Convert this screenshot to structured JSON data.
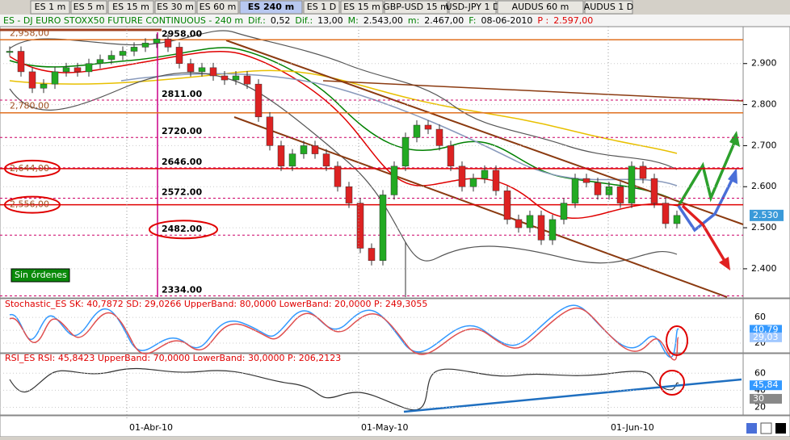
{
  "tabs": [
    "ES 1 m",
    "ES 5 m",
    "ES 15 m",
    "ES 30 m",
    "ES 60 m",
    "ES 240 m",
    "ES 1 D",
    "ES 15 m",
    "GBP-USD 15 m",
    "USD-JPY 1 D",
    "AUDUS 60 m",
    "AUDUS 1 D"
  ],
  "header": [
    {
      "text": "ES - DJ EURO STOXX50 FUTURE CONTINUOUS - 240 m",
      "color": "#008000"
    },
    {
      "text": "Dif.:",
      "color": "#008000"
    },
    {
      "text": "0,52",
      "color": "#000000"
    },
    {
      "text": "Dif.:",
      "color": "#008000"
    },
    {
      "text": "13,00",
      "color": "#000000"
    },
    {
      "text": "M:",
      "color": "#008000"
    },
    {
      "text": "2.543,00",
      "color": "#000000"
    },
    {
      "text": "m:",
      "color": "#008000"
    },
    {
      "text": "2.467,00",
      "color": "#000000"
    },
    {
      "text": "F:",
      "color": "#008000"
    },
    {
      "text": "08-06-2010",
      "color": "#000000"
    },
    {
      "text": "P :",
      "color": "#e00000"
    },
    {
      "text": "2.597,00",
      "color": "#e00000"
    }
  ],
  "main": {
    "ylim": [
      2331,
      2988
    ],
    "yticks": [
      {
        "value": 2900,
        "label": "2.900"
      },
      {
        "value": 2800,
        "label": "2.800"
      },
      {
        "value": 2700,
        "label": "2.700"
      },
      {
        "value": 2600,
        "label": "2.600"
      },
      {
        "value": 2500,
        "label": "2.500"
      },
      {
        "value": 2400,
        "label": "2.400"
      }
    ],
    "price_tag": {
      "value": 2530,
      "label": "2.530"
    },
    "closes": [
      2930,
      2880,
      2840,
      2850,
      2880,
      2890,
      2880,
      2900,
      2910,
      2920,
      2930,
      2940,
      2950,
      2960,
      2940,
      2900,
      2880,
      2890,
      2870,
      2860,
      2870,
      2850,
      2770,
      2700,
      2650,
      2680,
      2700,
      2680,
      2650,
      2600,
      2560,
      2450,
      2420,
      2580,
      2650,
      2720,
      2750,
      2740,
      2700,
      2650,
      2600,
      2620,
      2640,
      2590,
      2520,
      2500,
      2530,
      2470,
      2520,
      2560,
      2620,
      2610,
      2580,
      2600,
      2560,
      2650,
      2620,
      2560,
      2510,
      2530
    ],
    "levels": [
      {
        "value": 2958,
        "label": "2958.00"
      },
      {
        "value": 2811,
        "label": "2811.00"
      },
      {
        "value": 2720,
        "label": "2720.00"
      },
      {
        "value": 2646,
        "label": "2646.00"
      },
      {
        "value": 2572,
        "label": "2572.00"
      },
      {
        "value": 2482,
        "label": "2482.00",
        "circled": true
      },
      {
        "value": 2334,
        "label": "2334.00"
      }
    ],
    "left_levels": [
      {
        "value": 2958,
        "label": "2,958,00"
      },
      {
        "value": 2780,
        "label": "2,780,00"
      },
      {
        "value": 2644,
        "label": "2,644,00",
        "circled": true
      },
      {
        "value": 2556,
        "label": "2,556,00",
        "circled": true
      }
    ],
    "status": "Sin órdenes"
  },
  "stochastic": {
    "title": "Stochastic_ES SK: 40,7872 SD: 29,0266 UpperBand: 80,0000 LowerBand: 20,0000 P: 249,3055",
    "ylim": [
      5,
      89
    ],
    "yticks": [
      60,
      40,
      20
    ],
    "tags": [
      {
        "value": 40.79,
        "label": "40,79",
        "color": "#3399ff"
      },
      {
        "value": 29.03,
        "label": "29,03",
        "color": "#a0c8ff"
      }
    ]
  },
  "rsi": {
    "title": "RSI_ES RSI: 45,8423 UpperBand: 70,0000 LowerBand: 30,0000 P: 206,2123",
    "ylim": [
      11,
      83
    ],
    "yticks": [
      60,
      40,
      20
    ],
    "tags": [
      {
        "value": 45.84,
        "label": "45,84",
        "color": "#3399ff"
      },
      {
        "value": 30,
        "label": "30",
        "color": "#888888"
      }
    ]
  },
  "dates": [
    "01-Abr-10",
    "01-May-10",
    "01-Jun-10"
  ]
}
